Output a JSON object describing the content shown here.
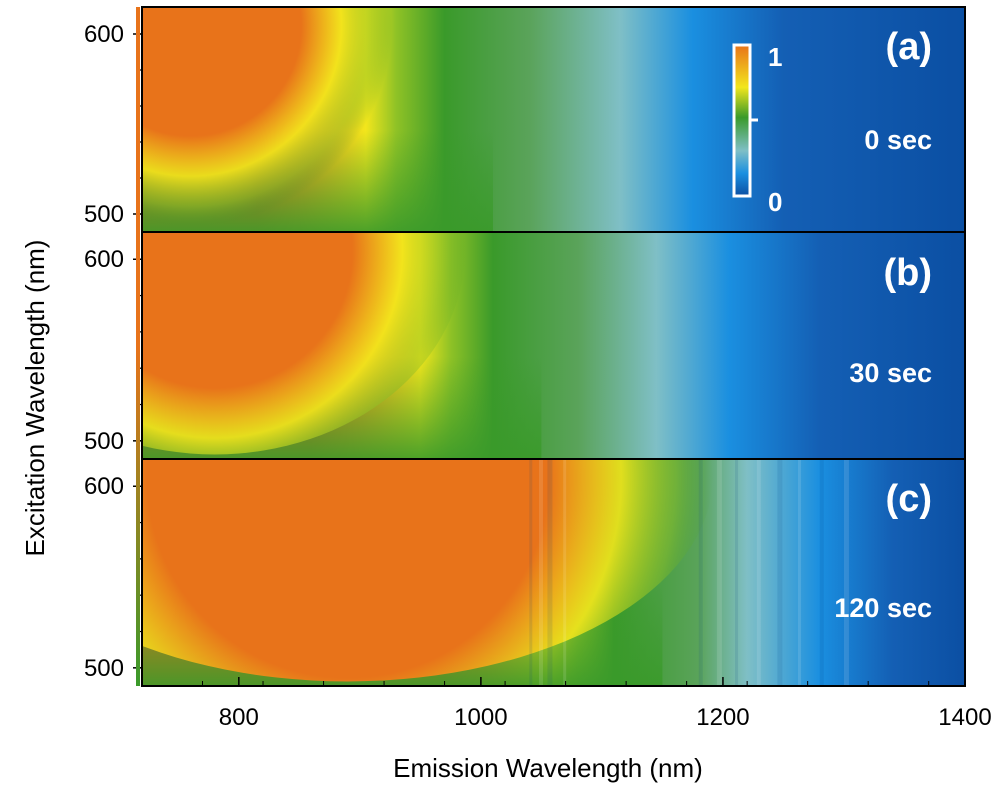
{
  "chart_data": {
    "type": "heatmap",
    "xlabel": "Emission Wavelength (nm)",
    "ylabel": "Excitation Wavelength (nm)",
    "xlim": [
      720,
      1400
    ],
    "x_ticks": [
      800,
      1000,
      1200,
      1400
    ],
    "x_tick_labels": [
      "800",
      "1000",
      "1200",
      "1400"
    ],
    "colormap": [
      "#0b4fa3",
      "#1a8fe0",
      "#7fbfc6",
      "#3a9a2a",
      "#f2e61c",
      "#e8731a"
    ],
    "colorbar": {
      "min_label": "0",
      "max_label": "1",
      "range": [
        0,
        1
      ]
    },
    "panels": [
      {
        "label": "(a)",
        "time": "0 sec",
        "ylim": [
          490,
          615
        ],
        "y_ticks": [
          500,
          600
        ],
        "y_tick_labels": [
          "500",
          "600"
        ],
        "intensity_profile": {
          "peak_emission": 760,
          "orange_edge": 855,
          "yellow_edge": 905,
          "green_edge": 1010,
          "cyan_edge": 1135,
          "blue_edge": 1230
        },
        "ripples": false
      },
      {
        "label": "(b)",
        "time": "30 sec",
        "ylim": [
          490,
          615
        ],
        "y_ticks": [
          500,
          600
        ],
        "y_tick_labels": [
          "500",
          "600"
        ],
        "intensity_profile": {
          "peak_emission": 780,
          "orange_edge": 900,
          "yellow_edge": 950,
          "green_edge": 1050,
          "cyan_edge": 1165,
          "blue_edge": 1260
        },
        "ripples": false
      },
      {
        "label": "(c)",
        "time": "120 sec",
        "ylim": [
          490,
          615
        ],
        "y_ticks": [
          500,
          600
        ],
        "y_tick_labels": [
          "500",
          "600"
        ],
        "intensity_profile": {
          "peak_emission": 890,
          "orange_edge": 1010,
          "yellow_edge": 1055,
          "green_edge": 1150,
          "cyan_edge": 1240,
          "blue_edge": 1320
        },
        "ripples": true
      }
    ]
  }
}
